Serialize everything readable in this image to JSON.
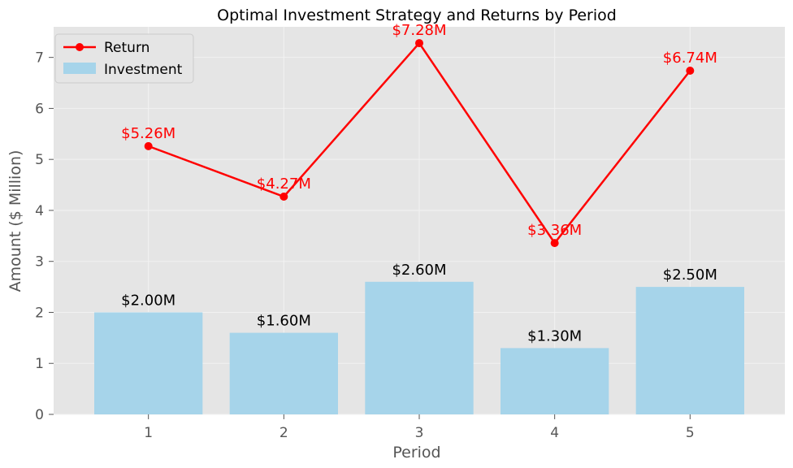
{
  "chart_data": {
    "type": "bar",
    "title": "Optimal Investment Strategy and Returns by Period",
    "xlabel": "Period",
    "ylabel": "Amount ($ Million)",
    "categories": [
      "1",
      "2",
      "3",
      "4",
      "5"
    ],
    "ylim": [
      0,
      7.6
    ],
    "yticks": [
      "0",
      "1",
      "2",
      "3",
      "4",
      "5",
      "6",
      "7"
    ],
    "grid": true,
    "legend_position": "top-left",
    "series": [
      {
        "name": "Return",
        "type": "line",
        "color": "#ff0000",
        "values": [
          5.26,
          4.27,
          7.28,
          3.36,
          6.74
        ],
        "labels": [
          "$5.26M",
          "$4.27M",
          "$7.28M",
          "$3.36M",
          "$6.74M"
        ]
      },
      {
        "name": "Investment",
        "type": "bar",
        "color": "#a6d4ea",
        "values": [
          2.0,
          1.6,
          2.6,
          1.3,
          2.5
        ],
        "labels": [
          "$2.00M",
          "$1.60M",
          "$2.60M",
          "$1.30M",
          "$2.50M"
        ]
      }
    ]
  }
}
